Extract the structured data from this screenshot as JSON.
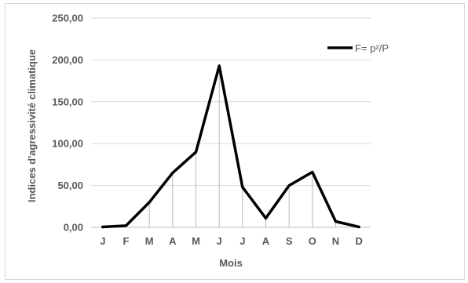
{
  "chart_data": {
    "type": "line",
    "categories": [
      "J",
      "F",
      "M",
      "A",
      "M",
      "J",
      "J",
      "A",
      "S",
      "O",
      "N",
      "D"
    ],
    "series": [
      {
        "name": "F= p²/P",
        "values": [
          0.5,
          2,
          30,
          65,
          90,
          193,
          48,
          11,
          50,
          66,
          7,
          0.5
        ],
        "color": "#000000"
      }
    ],
    "xlabel": "Mois",
    "ylabel": "Indices d'agressivité climatique",
    "ylim": [
      0,
      250
    ],
    "yticks": [
      "0,00",
      "50,00",
      "100,00",
      "150,00",
      "200,00",
      "250,00"
    ],
    "ytick_values": [
      0,
      50,
      100,
      150,
      200,
      250
    ],
    "grid": true,
    "drop_lines": true,
    "legend_position": "top-right"
  }
}
